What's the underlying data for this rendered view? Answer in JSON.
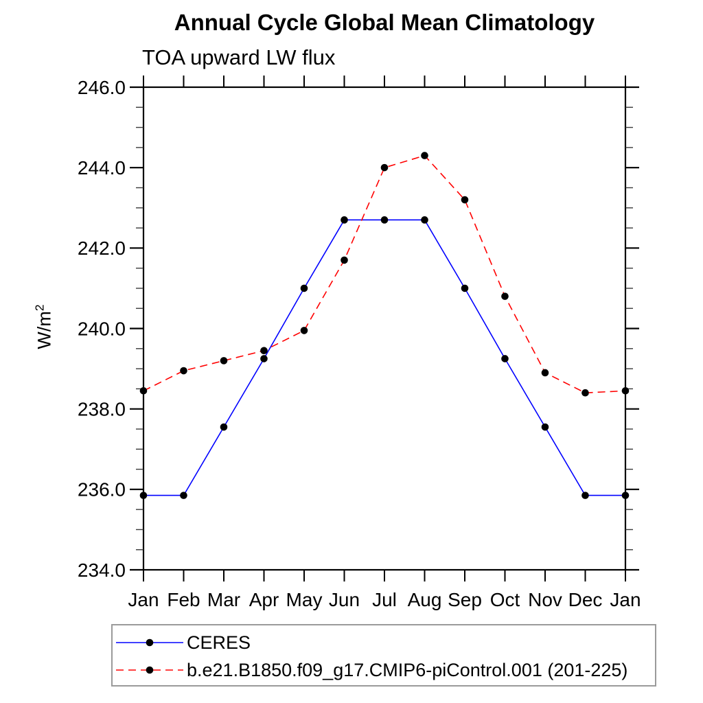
{
  "chart": {
    "title": "Annual Cycle Global Mean Climatology",
    "subtitle": "TOA upward LW flux",
    "ylabel_base": "W/m",
    "ylabel_exp": "2"
  },
  "chart_data": {
    "type": "line",
    "title": "Annual Cycle Global Mean Climatology",
    "subtitle": "TOA upward LW flux",
    "ylabel": "W/m^2",
    "x_categories": [
      "Jan",
      "Feb",
      "Mar",
      "Apr",
      "May",
      "Jun",
      "Jul",
      "Aug",
      "Sep",
      "Oct",
      "Nov",
      "Dec",
      "Jan"
    ],
    "ylim": [
      234.0,
      246.0
    ],
    "ytick_major_interval": 2.0,
    "ytick_minor_interval": 0.5,
    "ytick_labels": [
      "234.0",
      "236.0",
      "238.0",
      "240.0",
      "242.0",
      "244.0",
      "246.0"
    ],
    "grid": false,
    "legend_position": "bottom-left",
    "series": [
      {
        "name": "CERES",
        "color": "#0000ff",
        "line_style": "solid",
        "marker": "filled-circle",
        "marker_color": "#000000",
        "values": [
          235.85,
          235.85,
          237.55,
          239.25,
          241.0,
          242.7,
          242.7,
          242.7,
          241.0,
          239.25,
          237.55,
          235.85,
          235.85
        ]
      },
      {
        "name": "b.e21.B1850.f09_g17.CMIP6-piControl.001 (201-225)",
        "color": "#ff0000",
        "line_style": "dashed",
        "marker": "filled-circle",
        "marker_color": "#000000",
        "values": [
          238.45,
          238.95,
          239.2,
          239.45,
          239.95,
          241.7,
          244.0,
          244.3,
          243.2,
          240.8,
          238.9,
          238.4,
          238.45
        ]
      }
    ]
  }
}
